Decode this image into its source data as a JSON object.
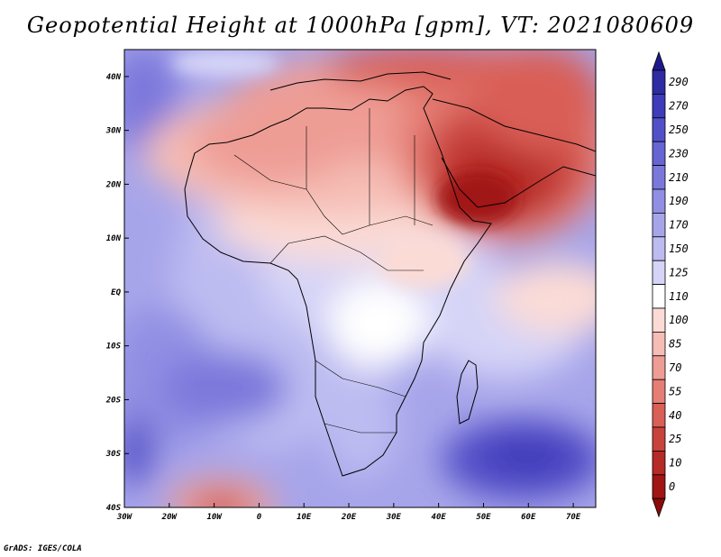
{
  "title": "Geopotential Height at 1000hPa [gpm], VT: 2021080609",
  "credit": "GrADS: IGES/COLA",
  "map": {
    "lat_labels": [
      "40N",
      "30N",
      "20N",
      "10N",
      "EQ",
      "10S",
      "20S",
      "30S",
      "40S"
    ],
    "lon_labels": [
      "30W",
      "20W",
      "10W",
      "0",
      "10E",
      "20E",
      "30E",
      "40E",
      "50E",
      "60E",
      "70E"
    ]
  },
  "colorbar": {
    "levels": [
      "290",
      "270",
      "250",
      "230",
      "210",
      "190",
      "170",
      "150",
      "125",
      "110",
      "100",
      "85",
      "70",
      "55",
      "40",
      "25",
      "10",
      "0"
    ],
    "colors": [
      "#2e2ba3",
      "#3f3bba",
      "#5250c8",
      "#6764d4",
      "#7b78dc",
      "#918fe3",
      "#a7a5ea",
      "#bdbcf1",
      "#d5d4f7",
      "#ffffff",
      "#fbdbd6",
      "#f5bdb5",
      "#ee9d95",
      "#e57e75",
      "#d95f57",
      "#c9433d",
      "#b62a27",
      "#a11514"
    ],
    "top_color": "#1f1a8c",
    "bottom_color": "#8c0a0a"
  },
  "chart_data": {
    "type": "heatmap",
    "title": "Geopotential Height at 1000hPa [gpm], VT: 2021080609",
    "variable": "Geopotential Height",
    "level": "1000hPa",
    "units": "gpm",
    "valid_time": "2021080609",
    "lon_range": [
      -30,
      75
    ],
    "lat_range": [
      -40,
      45
    ],
    "x_ticks": [
      "30W",
      "20W",
      "10W",
      "0",
      "10E",
      "20E",
      "30E",
      "40E",
      "50E",
      "60E",
      "70E"
    ],
    "y_ticks": [
      "40N",
      "30N",
      "20N",
      "10N",
      "EQ",
      "10S",
      "20S",
      "30S",
      "40S"
    ],
    "contour_levels": [
      0,
      10,
      25,
      40,
      55,
      70,
      85,
      100,
      110,
      125,
      150,
      170,
      190,
      210,
      230,
      250,
      270,
      290
    ]
  }
}
